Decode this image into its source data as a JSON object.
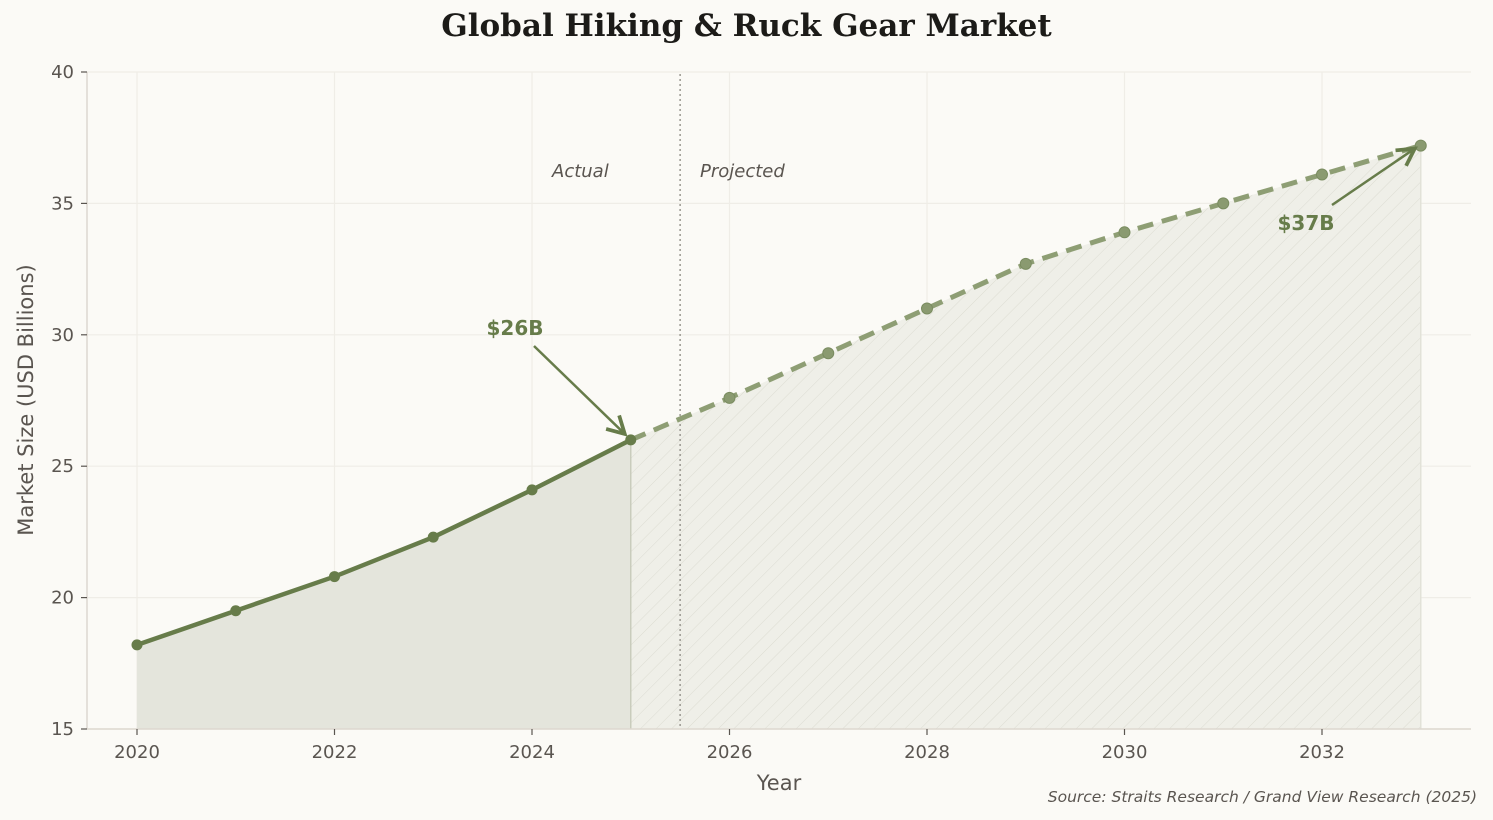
{
  "title": "Global Hiking & Ruck Gear Market",
  "source": "Source: Straits Research / Grand View Research (2025)",
  "labels": {
    "actual": "Actual",
    "projected": "Projected"
  },
  "annotations": [
    {
      "text": "$26B",
      "year": 2025,
      "value": 26.0
    },
    {
      "text": "$37B",
      "year": 2033,
      "value": 37.2
    }
  ],
  "colors": {
    "line": "#677c4a",
    "projected_line": "#8e9e74",
    "fill_actual": "#e4e5dc",
    "fill_projected": "#efefe8",
    "background": "#fbfaf6"
  },
  "chart_data": {
    "type": "line",
    "title": "Global Hiking & Ruck Gear Market",
    "xlabel": "Year",
    "ylabel": "Market Size (USD Billions)",
    "xlim": [
      2019.5,
      2033.5
    ],
    "ylim": [
      15,
      40
    ],
    "xticks": [
      2020,
      2022,
      2024,
      2026,
      2028,
      2030,
      2032
    ],
    "yticks": [
      15,
      20,
      25,
      30,
      35,
      40
    ],
    "grid": true,
    "divider_x": 2025.5,
    "series": [
      {
        "name": "Actual",
        "style": "solid",
        "x": [
          2020,
          2021,
          2022,
          2023,
          2024,
          2025
        ],
        "values": [
          18.2,
          19.5,
          20.8,
          22.3,
          24.1,
          26.0
        ]
      },
      {
        "name": "Projected",
        "style": "dashed",
        "x": [
          2025,
          2026,
          2027,
          2028,
          2029,
          2030,
          2031,
          2032,
          2033
        ],
        "values": [
          26.0,
          27.6,
          29.3,
          31.0,
          32.7,
          33.9,
          35.0,
          36.1,
          37.2
        ]
      }
    ],
    "annotations": [
      {
        "text": "$26B",
        "x": 2025,
        "y": 26.0
      },
      {
        "text": "$37B",
        "x": 2033,
        "y": 37.2
      },
      {
        "text": "Actual",
        "x": 2024.2,
        "y": 36
      },
      {
        "text": "Projected",
        "x": 2025.7,
        "y": 36
      }
    ],
    "source": "Source: Straits Research / Grand View Research (2025)"
  }
}
